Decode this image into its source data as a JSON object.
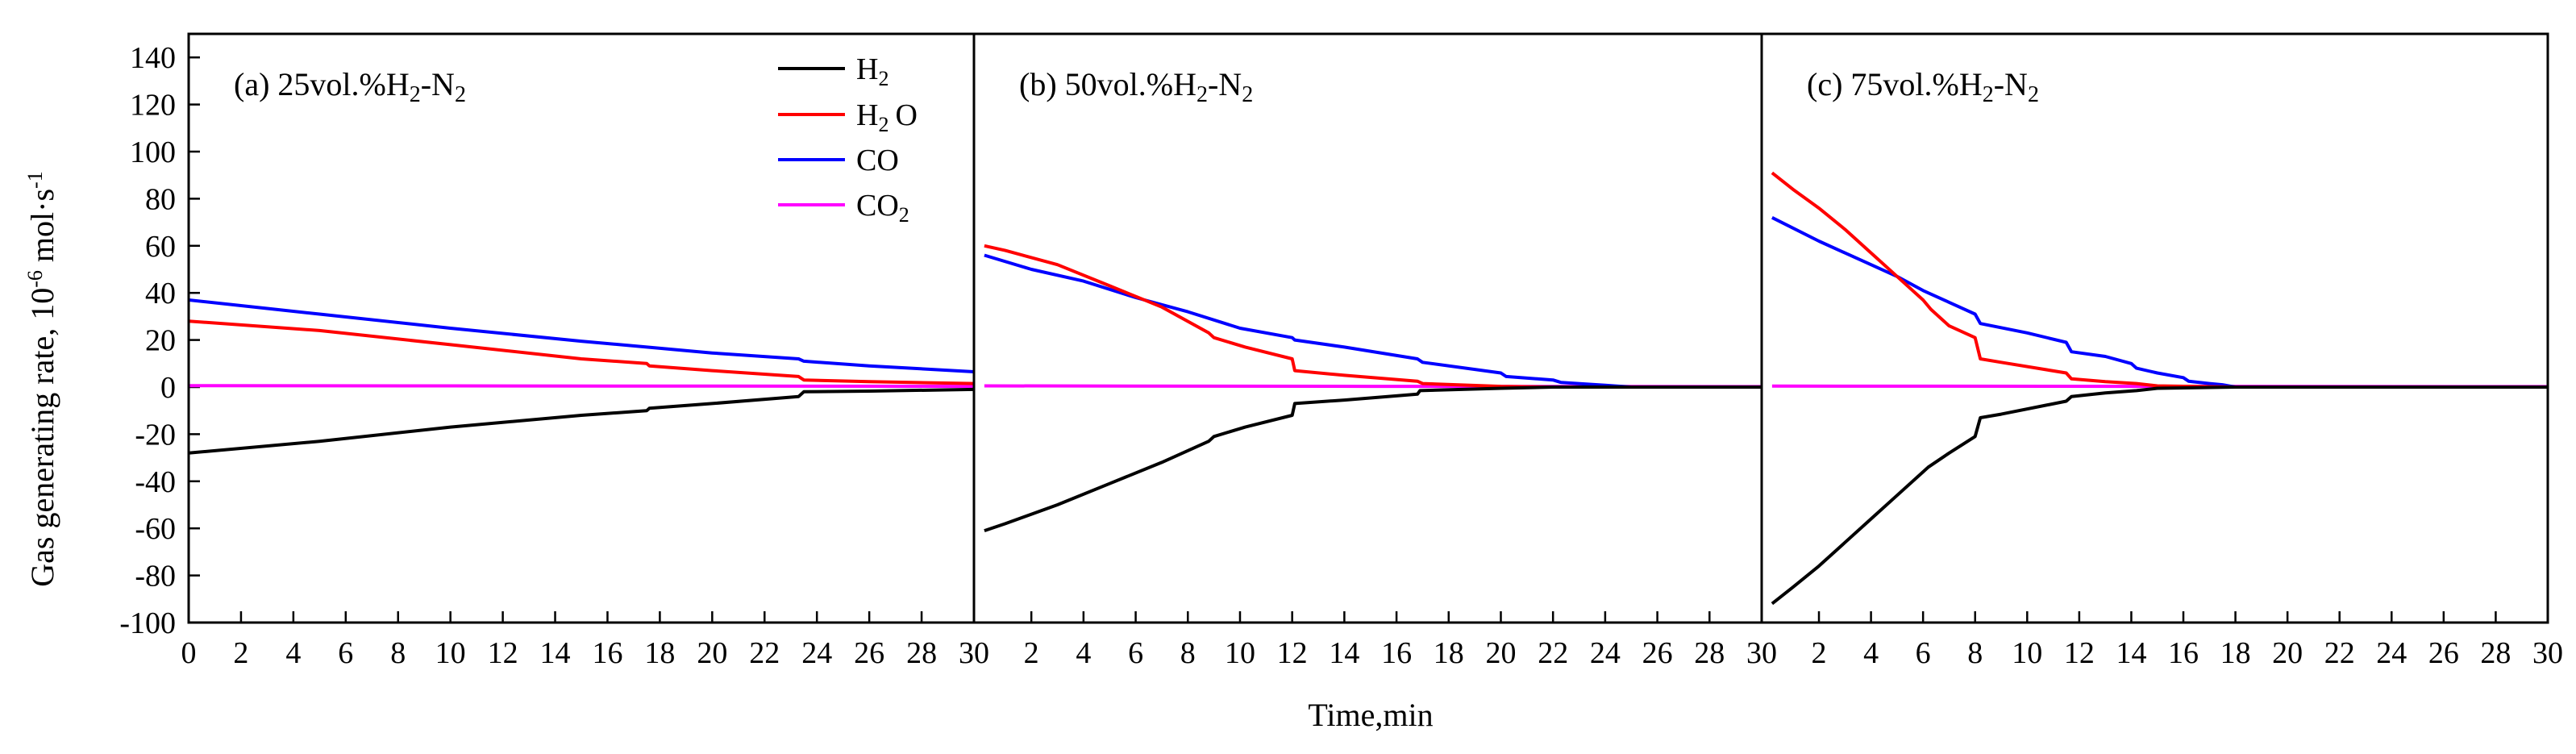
{
  "chart_data": {
    "type": "line",
    "ylabel": "Gas generating rate, 10",
    "ylabel_exp": "-6",
    "ylabel_unit": "mol·s",
    "ylabel_unit_exp": "-1",
    "xlabel": "Time,min",
    "ylim": [
      -100,
      150
    ],
    "yticks": [
      140,
      120,
      100,
      80,
      60,
      40,
      20,
      0,
      -20,
      -40,
      -60,
      -80,
      -100
    ],
    "colors": {
      "H2": "#000000",
      "H2O": "#ff0000",
      "CO": "#0000ff",
      "CO2": "#ff00ff"
    },
    "legend": [
      {
        "key": "H2",
        "base": "H",
        "sub": "2",
        "tail": ""
      },
      {
        "key": "H2O",
        "base": "H",
        "sub": "2",
        "tail": "O"
      },
      {
        "key": "CO",
        "base": "CO",
        "sub": "",
        "tail": ""
      },
      {
        "key": "CO2",
        "base": "CO",
        "sub": "2",
        "tail": ""
      }
    ],
    "panels": [
      {
        "label_pre": "(a) 25vol.%H",
        "label_sub": "2",
        "label_post": "-N",
        "label_sub2": "2",
        "xticks": [
          0,
          2,
          4,
          6,
          8,
          10,
          12,
          14,
          16,
          18,
          20,
          22,
          24,
          26,
          28,
          30
        ],
        "series": {
          "H2": [
            [
              0,
              -28
            ],
            [
              5,
              -23
            ],
            [
              10,
              -17
            ],
            [
              15,
              -12
            ],
            [
              17.5,
              -10
            ],
            [
              17.6,
              -9
            ],
            [
              20,
              -7
            ],
            [
              23.3,
              -4
            ],
            [
              23.5,
              -2
            ],
            [
              26,
              -1.7
            ],
            [
              30,
              -1
            ]
          ],
          "H2O": [
            [
              0,
              28
            ],
            [
              5,
              24
            ],
            [
              10,
              18
            ],
            [
              15,
              12
            ],
            [
              17.5,
              10
            ],
            [
              17.6,
              9
            ],
            [
              20,
              7
            ],
            [
              23.3,
              4.5
            ],
            [
              23.5,
              3
            ],
            [
              26,
              2.3
            ],
            [
              30,
              1.5
            ]
          ],
          "CO": [
            [
              0,
              37
            ],
            [
              5,
              31
            ],
            [
              10,
              25
            ],
            [
              15,
              19.5
            ],
            [
              17.5,
              17
            ],
            [
              20,
              14.5
            ],
            [
              23.3,
              12
            ],
            [
              23.5,
              11
            ],
            [
              26,
              9
            ],
            [
              30,
              6.5
            ]
          ],
          "CO2": [
            [
              0,
              0.6
            ],
            [
              10,
              0.5
            ],
            [
              20,
              0.4
            ],
            [
              30,
              0.3
            ]
          ]
        }
      },
      {
        "label_pre": "(b) 50vol.%H",
        "label_sub": "2",
        "label_post": "-N",
        "label_sub2": "2",
        "xticks": [
          2,
          4,
          6,
          8,
          10,
          12,
          14,
          16,
          18,
          20,
          22,
          24,
          26,
          28,
          30
        ],
        "series": {
          "H2": [
            [
              0.2,
              -61
            ],
            [
              1,
              -58
            ],
            [
              3,
              -50
            ],
            [
              5,
              -41
            ],
            [
              7,
              -32
            ],
            [
              8.8,
              -23
            ],
            [
              9,
              -21
            ],
            [
              10.2,
              -17
            ],
            [
              12,
              -12
            ],
            [
              12.1,
              -7
            ],
            [
              14,
              -5.5
            ],
            [
              16.8,
              -3
            ],
            [
              16.9,
              -1.5
            ],
            [
              20,
              -0.5
            ],
            [
              22,
              0
            ],
            [
              30,
              0
            ]
          ],
          "H2O": [
            [
              0.2,
              60
            ],
            [
              1,
              58
            ],
            [
              3,
              52
            ],
            [
              5,
              43
            ],
            [
              7,
              34
            ],
            [
              8.8,
              23
            ],
            [
              9,
              21
            ],
            [
              10.2,
              17
            ],
            [
              12,
              12
            ],
            [
              12.1,
              7
            ],
            [
              14,
              5
            ],
            [
              16.8,
              2.5
            ],
            [
              17,
              1.5
            ],
            [
              20,
              0.3
            ],
            [
              22,
              0
            ],
            [
              30,
              0
            ]
          ],
          "CO": [
            [
              0.2,
              56
            ],
            [
              2,
              50
            ],
            [
              4,
              45
            ],
            [
              6,
              38
            ],
            [
              8,
              32
            ],
            [
              10,
              25
            ],
            [
              12,
              21
            ],
            [
              12.1,
              20
            ],
            [
              14,
              17
            ],
            [
              16.8,
              12
            ],
            [
              17,
              10.5
            ],
            [
              20,
              6
            ],
            [
              20.2,
              4.5
            ],
            [
              22,
              3
            ],
            [
              22.3,
              2
            ],
            [
              24,
              0.8
            ],
            [
              25,
              0
            ],
            [
              30,
              0
            ]
          ],
          "CO2": [
            [
              0.2,
              0.5
            ],
            [
              15,
              0.3
            ],
            [
              30,
              0.2
            ]
          ]
        }
      },
      {
        "label_pre": "(c) 75vol.%H",
        "label_sub": "2",
        "label_post": "-N",
        "label_sub2": "2",
        "xticks": [
          2,
          4,
          6,
          8,
          10,
          12,
          14,
          16,
          18,
          20,
          22,
          24,
          26,
          28,
          30
        ],
        "series": {
          "H2": [
            [
              0.2,
              -92
            ],
            [
              1,
              -85
            ],
            [
              2,
              -76
            ],
            [
              3,
              -66
            ],
            [
              4,
              -56
            ],
            [
              5,
              -46
            ],
            [
              6,
              -36
            ],
            [
              6.2,
              -34
            ],
            [
              7,
              -28
            ],
            [
              8,
              -21
            ],
            [
              8.2,
              -13
            ],
            [
              9,
              -11.5
            ],
            [
              11.5,
              -6
            ],
            [
              11.7,
              -4
            ],
            [
              13,
              -2.5
            ],
            [
              14.2,
              -1.5
            ],
            [
              15,
              -0.5
            ],
            [
              18,
              0
            ],
            [
              30,
              0
            ]
          ],
          "H2O": [
            [
              0.2,
              91
            ],
            [
              1,
              84
            ],
            [
              2,
              76
            ],
            [
              3,
              67
            ],
            [
              4,
              57
            ],
            [
              5,
              47
            ],
            [
              6,
              37
            ],
            [
              6.3,
              33
            ],
            [
              7,
              26
            ],
            [
              8,
              21
            ],
            [
              8.2,
              12
            ],
            [
              9,
              10.5
            ],
            [
              11.5,
              6
            ],
            [
              11.7,
              3.5
            ],
            [
              13,
              2.3
            ],
            [
              14.2,
              1.5
            ],
            [
              15,
              0.5
            ],
            [
              18,
              0
            ],
            [
              30,
              0
            ]
          ],
          "CO": [
            [
              0.2,
              72
            ],
            [
              2,
              62
            ],
            [
              4,
              52
            ],
            [
              5,
              47
            ],
            [
              6,
              41
            ],
            [
              7,
              36
            ],
            [
              8,
              31
            ],
            [
              8.2,
              27
            ],
            [
              10,
              23
            ],
            [
              11.5,
              19
            ],
            [
              11.7,
              15
            ],
            [
              13,
              13
            ],
            [
              14,
              10
            ],
            [
              14.2,
              8
            ],
            [
              15,
              6
            ],
            [
              16,
              4
            ],
            [
              16.2,
              2.5
            ],
            [
              17,
              1.5
            ],
            [
              17.5,
              1
            ],
            [
              18,
              0
            ],
            [
              30,
              0
            ]
          ],
          "CO2": [
            [
              0.2,
              0.4
            ],
            [
              15,
              0.3
            ],
            [
              30,
              0.2
            ]
          ]
        }
      }
    ]
  }
}
